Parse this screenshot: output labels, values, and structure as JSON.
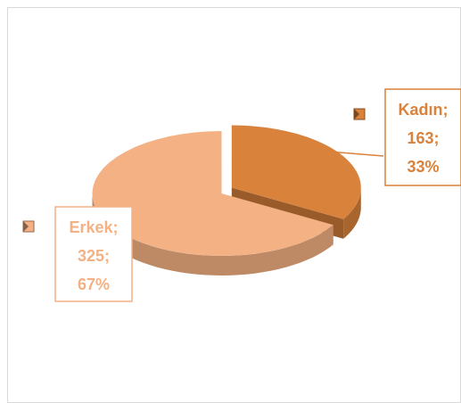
{
  "chart_data": {
    "type": "pie3d",
    "categories": [
      "Kadın;",
      "Erkek;"
    ],
    "values": [
      163,
      325
    ],
    "value_labels": [
      "163;",
      "325;"
    ],
    "percentages": [
      33,
      67
    ],
    "percentage_labels": [
      "33%",
      "67%"
    ],
    "colors": [
      "#d9823b",
      "#f4b183"
    ]
  }
}
